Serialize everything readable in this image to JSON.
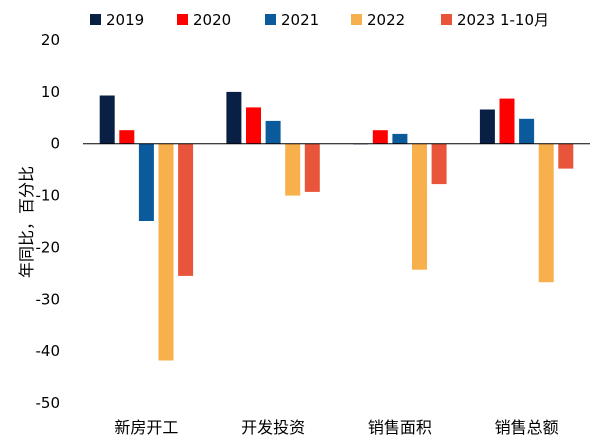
{
  "chart_data": {
    "type": "bar",
    "title": "",
    "xlabel": "",
    "ylabel": "年同比，百分比",
    "categories": [
      "新房开工",
      "开发投资",
      "销售面积",
      "销售总额"
    ],
    "series": [
      {
        "name": "2019",
        "color": "#0a1f44",
        "values": [
          9.3,
          10.0,
          -0.1,
          6.6
        ]
      },
      {
        "name": "2020",
        "color": "#ff0000",
        "values": [
          2.6,
          7.0,
          2.6,
          8.7
        ]
      },
      {
        "name": "2021",
        "color": "#0a5a9c",
        "values": [
          -14.9,
          4.4,
          1.9,
          4.8
        ]
      },
      {
        "name": "2022",
        "color": "#f8b04c",
        "values": [
          -41.8,
          -10.0,
          -24.3,
          -26.7
        ]
      },
      {
        "name": "2023 1-10月",
        "color": "#e8553a",
        "values": [
          -25.5,
          -9.3,
          -7.8,
          -4.8
        ]
      }
    ],
    "ylim": [
      -50,
      20
    ],
    "yticks": [
      20,
      10,
      0,
      -10,
      -20,
      -30,
      -40,
      -50
    ],
    "grid": false,
    "legend_position": "top"
  }
}
